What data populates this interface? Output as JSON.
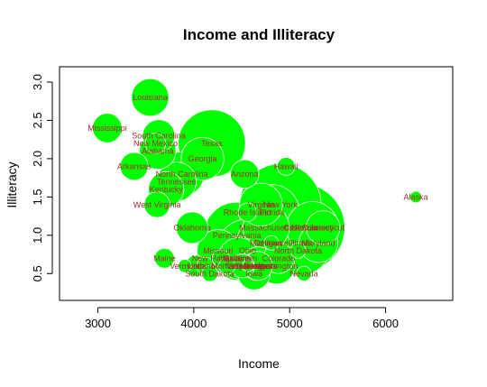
{
  "chart_data": {
    "type": "scatter",
    "title": "Income and Illiteracy",
    "xlabel": "Income",
    "ylabel": "Illiteracy",
    "xlim": [
      2600,
      6700
    ],
    "ylim": [
      0.15,
      3.2
    ],
    "xticks": [
      "3000",
      "4000",
      "5000",
      "6000"
    ],
    "yticks": [
      "0.5",
      "1.0",
      "1.5",
      "2.0",
      "2.5",
      "3.0"
    ],
    "bubble_size_note": "bubble area proportional to population (unlabeled)",
    "points": [
      {
        "label": "Louisiana",
        "x": 3545,
        "y": 2.8,
        "size": 3806
      },
      {
        "label": "Mississippi",
        "x": 3098,
        "y": 2.4,
        "size": 2341
      },
      {
        "label": "South Carolina",
        "x": 3635,
        "y": 2.3,
        "size": 2816
      },
      {
        "label": "New Mexico",
        "x": 3601,
        "y": 2.2,
        "size": 1144
      },
      {
        "label": "Texas",
        "x": 4188,
        "y": 2.2,
        "size": 12237
      },
      {
        "label": "Alabama",
        "x": 3624,
        "y": 2.1,
        "size": 3615
      },
      {
        "label": "Georgia",
        "x": 4091,
        "y": 2.0,
        "size": 4931
      },
      {
        "label": "Arkansas",
        "x": 3378,
        "y": 1.9,
        "size": 2110
      },
      {
        "label": "Arizona",
        "x": 4530,
        "y": 1.8,
        "size": 2212
      },
      {
        "label": "North Carolina",
        "x": 3875,
        "y": 1.8,
        "size": 5441
      },
      {
        "label": "Hawaii",
        "x": 4963,
        "y": 1.9,
        "size": 868
      },
      {
        "label": "Tennessee",
        "x": 3821,
        "y": 1.7,
        "size": 4173
      },
      {
        "label": "Kentucky",
        "x": 3712,
        "y": 1.6,
        "size": 3387
      },
      {
        "label": "Alaska",
        "x": 6315,
        "y": 1.5,
        "size": 365
      },
      {
        "label": "West Virginia",
        "x": 3617,
        "y": 1.4,
        "size": 1799
      },
      {
        "label": "New York",
        "x": 4903,
        "y": 1.4,
        "size": 18076
      },
      {
        "label": "Virginia",
        "x": 4701,
        "y": 1.4,
        "size": 4981
      },
      {
        "label": "Rhode Island",
        "x": 4558,
        "y": 1.3,
        "size": 931
      },
      {
        "label": "Florida",
        "x": 4815,
        "y": 1.3,
        "size": 8277
      },
      {
        "label": "Oklahoma",
        "x": 3983,
        "y": 1.1,
        "size": 2715
      },
      {
        "label": "Massachusetts",
        "x": 4755,
        "y": 1.1,
        "size": 5814
      },
      {
        "label": "California",
        "x": 5114,
        "y": 1.1,
        "size": 21198
      },
      {
        "label": "Connecticut",
        "x": 5348,
        "y": 1.1,
        "size": 3100
      },
      {
        "label": "New Jersey",
        "x": 5237,
        "y": 1.1,
        "size": 7333
      },
      {
        "label": "Pennsylvania",
        "x": 4449,
        "y": 1.0,
        "size": 11860
      },
      {
        "label": "Delaware",
        "x": 4809,
        "y": 0.9,
        "size": 579
      },
      {
        "label": "Illinois",
        "x": 5107,
        "y": 0.9,
        "size": 11197
      },
      {
        "label": "Maryland",
        "x": 5299,
        "y": 0.9,
        "size": 4122
      },
      {
        "label": "Michigan",
        "x": 4751,
        "y": 0.9,
        "size": 9111
      },
      {
        "label": "Missouri",
        "x": 4254,
        "y": 0.8,
        "size": 4767
      },
      {
        "label": "Ohio",
        "x": 4561,
        "y": 0.8,
        "size": 10735
      },
      {
        "label": "North Dakota",
        "x": 5087,
        "y": 0.8,
        "size": 637
      },
      {
        "label": "Maine",
        "x": 3694,
        "y": 0.7,
        "size": 1058
      },
      {
        "label": "New Hampshire",
        "x": 4281,
        "y": 0.7,
        "size": 812
      },
      {
        "label": "Colorado",
        "x": 4884,
        "y": 0.7,
        "size": 2541
      },
      {
        "label": "Wyoming",
        "x": 4566,
        "y": 0.6,
        "size": 376
      },
      {
        "label": "Montana",
        "x": 4347,
        "y": 0.6,
        "size": 746
      },
      {
        "label": "Vermont",
        "x": 3907,
        "y": 0.6,
        "size": 472
      },
      {
        "label": "Utah",
        "x": 4022,
        "y": 0.6,
        "size": 1203
      },
      {
        "label": "Idaho",
        "x": 4119,
        "y": 0.6,
        "size": 813
      },
      {
        "label": "Oregon",
        "x": 4660,
        "y": 0.6,
        "size": 2284
      },
      {
        "label": "Wisconsin",
        "x": 4468,
        "y": 0.7,
        "size": 4589
      },
      {
        "label": "Indiana",
        "x": 4458,
        "y": 0.7,
        "size": 5313
      },
      {
        "label": "Kansas",
        "x": 4669,
        "y": 0.6,
        "size": 2280
      },
      {
        "label": "Minnesota",
        "x": 4675,
        "y": 0.6,
        "size": 3921
      },
      {
        "label": "Washington",
        "x": 4864,
        "y": 0.6,
        "size": 3559
      },
      {
        "label": "Nebraska",
        "x": 4508,
        "y": 0.6,
        "size": 1544
      },
      {
        "label": "South Dakota",
        "x": 4167,
        "y": 0.5,
        "size": 681
      },
      {
        "label": "Iowa",
        "x": 4628,
        "y": 0.5,
        "size": 2861
      },
      {
        "label": "Nevada",
        "x": 5149,
        "y": 0.5,
        "size": 590
      }
    ],
    "grid": false,
    "legend": "none"
  },
  "colors": {
    "bubble_fill": "#00ff00",
    "bubble_stroke": "#ffffff",
    "label_color": "#a52a2a"
  }
}
